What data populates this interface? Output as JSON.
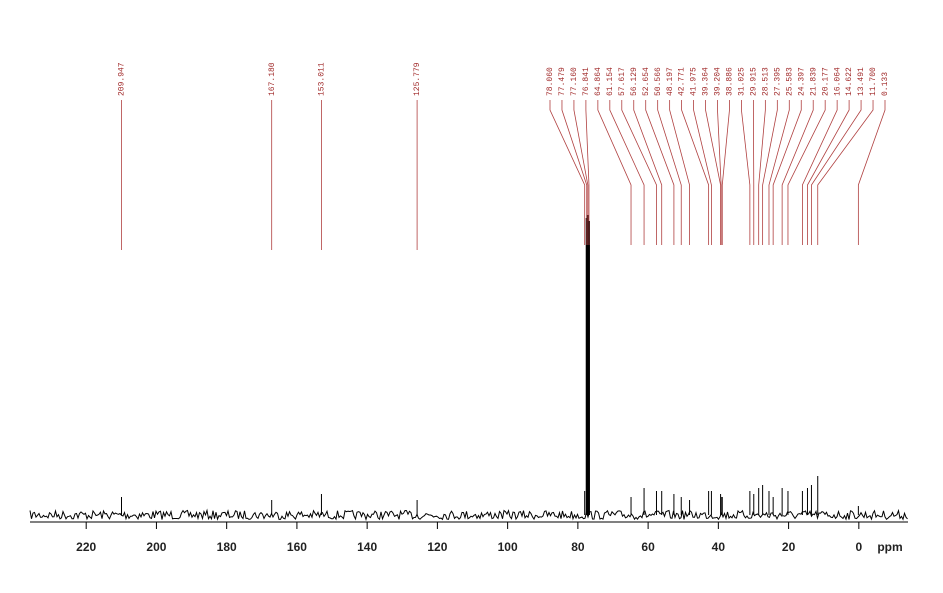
{
  "chart_data": {
    "type": "spectrum",
    "x_label": "ppm",
    "x": [
      209.947,
      167.18,
      153.011,
      125.779,
      78.06,
      77.479,
      77.16,
      76.841,
      64.864,
      61.154,
      57.617,
      56.129,
      52.654,
      50.566,
      48.197,
      42.771,
      41.975,
      39.364,
      39.204,
      38.886,
      31.025,
      29.915,
      28.513,
      27.395,
      25.583,
      24.397,
      21.839,
      20.177,
      16.064,
      14.622,
      13.491,
      11.7,
      0.133
    ],
    "values": [
      6,
      5,
      7,
      5,
      8,
      99,
      100,
      98,
      6,
      9,
      8,
      8,
      7,
      6,
      5,
      8,
      8,
      7,
      6,
      6,
      8,
      7,
      9,
      10,
      8,
      6,
      9,
      8,
      8,
      9,
      10,
      13,
      3
    ],
    "value_labels": [
      "209.947",
      "167.180",
      "153.011",
      "125.779",
      "78.060",
      "77.479",
      "77.160",
      "76.841",
      "64.864",
      "61.154",
      "57.617",
      "56.129",
      "52.654",
      "50.566",
      "48.197",
      "42.771",
      "41.975",
      "39.364",
      "39.204",
      "38.886",
      "31.025",
      "29.915",
      "28.513",
      "27.395",
      "25.583",
      "24.397",
      "21.839",
      "20.177",
      "16.064",
      "14.622",
      "13.491",
      "11.700",
      "0.133"
    ],
    "xlim": [
      236,
      -14
    ],
    "xticks": [
      220,
      200,
      180,
      160,
      140,
      120,
      100,
      80,
      60,
      40,
      20,
      0
    ],
    "ylim": [
      0,
      100
    ],
    "color": "#000000",
    "label_color": "#b04040"
  }
}
